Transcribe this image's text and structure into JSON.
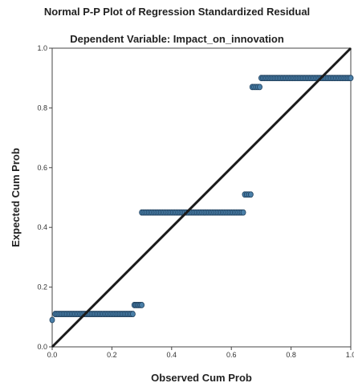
{
  "chart_data": {
    "type": "scatter",
    "title": "Normal P-P Plot of Regression Standardized Residual",
    "subtitle": "Dependent Variable: Impact_on_innovation",
    "xlabel": "Observed Cum Prob",
    "ylabel": "Expected Cum Prob",
    "xlim": [
      0,
      1.0
    ],
    "ylim": [
      0,
      1.0
    ],
    "x_ticks": [
      "0.0",
      "0.2",
      "0.4",
      "0.6",
      "0.8",
      "1.0"
    ],
    "y_ticks": [
      "0.0",
      "0.2",
      "0.4",
      "0.6",
      "0.8",
      "1.0"
    ],
    "grid": false,
    "reference_line": {
      "from": [
        0,
        0
      ],
      "to": [
        1,
        1
      ],
      "color": "#1a1a1a"
    },
    "point_color": "#4a7fa8",
    "point_stroke": "#1f3f5c",
    "point_groups": [
      {
        "y": 0.09,
        "x_start": 0.0,
        "x_end": 0.005,
        "count": 1
      },
      {
        "y": 0.11,
        "x_start": 0.01,
        "x_end": 0.27,
        "count": 48
      },
      {
        "y": 0.14,
        "x_start": 0.275,
        "x_end": 0.3,
        "count": 6
      },
      {
        "y": 0.45,
        "x_start": 0.3,
        "x_end": 0.64,
        "count": 60
      },
      {
        "y": 0.51,
        "x_start": 0.645,
        "x_end": 0.665,
        "count": 4
      },
      {
        "y": 0.87,
        "x_start": 0.67,
        "x_end": 0.695,
        "count": 5
      },
      {
        "y": 0.9,
        "x_start": 0.7,
        "x_end": 1.0,
        "count": 55
      }
    ]
  }
}
